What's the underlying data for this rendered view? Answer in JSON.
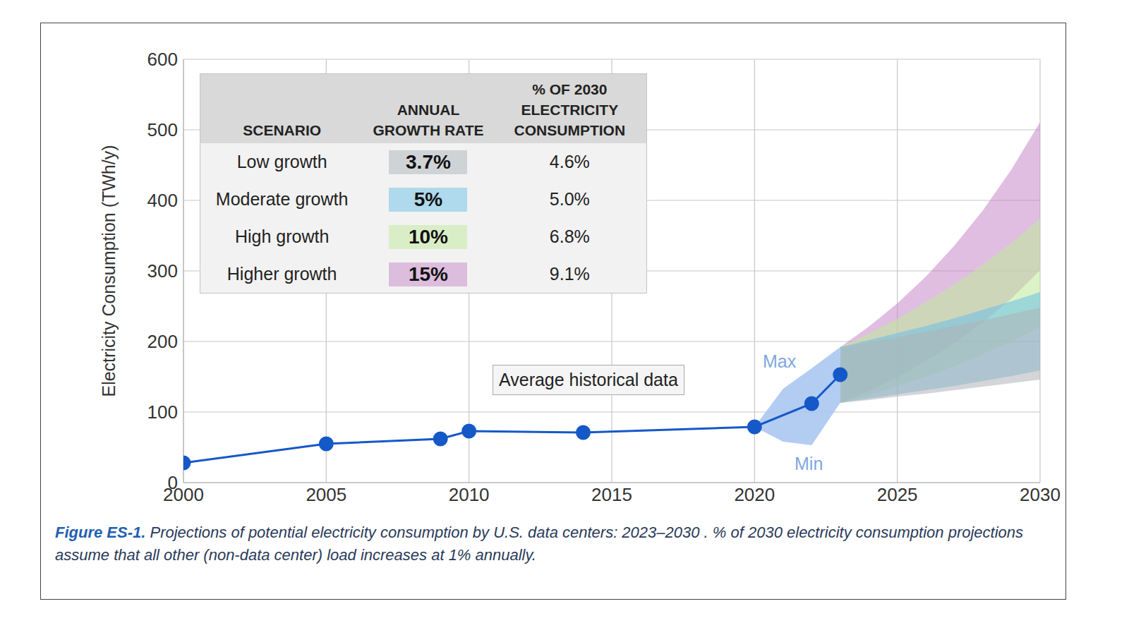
{
  "chart_data": {
    "type": "line",
    "caption_label": "Figure ES-1.",
    "caption": "Projections of potential electricity consumption by U.S. data centers: 2023–2030 . % of 2030 electricity consumption projections assume that all other (non-data center) load increases at 1% annually.",
    "y_label": "Electricity Consumption (TWh/y)",
    "xlim": [
      2000,
      2030
    ],
    "xticks": [
      2000,
      2005,
      2010,
      2015,
      2020,
      2025,
      2030
    ],
    "ylim": [
      0,
      600
    ],
    "yticks": [
      0,
      100,
      200,
      300,
      400,
      500,
      600
    ],
    "grid": true,
    "historical": {
      "name": "Average historical data",
      "color": "#1558c8",
      "marker": "circle",
      "x": [
        2000,
        2005,
        2009,
        2010,
        2014,
        2020,
        2022,
        2023
      ],
      "values": [
        28,
        55,
        62,
        73,
        71,
        79,
        112,
        153
      ]
    },
    "historical_range": {
      "color": "#a6c3ee",
      "max_label": "Max",
      "min_label": "Min",
      "x": [
        2020,
        2021,
        2022,
        2023
      ],
      "min": [
        79,
        58,
        53,
        113
      ],
      "max": [
        79,
        133,
        162,
        192
      ]
    },
    "table_headers": [
      [
        "SCENARIO"
      ],
      [
        "ANNUAL",
        "GROWTH RATE"
      ],
      [
        "% OF 2030",
        "ELECTRICITY",
        "CONSUMPTION"
      ]
    ],
    "projection_x": [
      2023,
      2024,
      2025,
      2026,
      2027,
      2028,
      2029,
      2030
    ],
    "series": [
      {
        "name": "Low growth",
        "color": "#aeb3b7",
        "annual_growth_rate": "3.7%",
        "share_of_2030_consumption": "4.6%",
        "low": [
          113,
          117,
          122,
          126,
          131,
          136,
          141,
          146
        ],
        "high": [
          192,
          199,
          206,
          214,
          222,
          230,
          239,
          248
        ]
      },
      {
        "name": "Moderate growth",
        "color": "#6cc0e6",
        "annual_growth_rate": "5%",
        "share_of_2030_consumption": "5.0%",
        "low": [
          113,
          119,
          125,
          131,
          137,
          144,
          151,
          159
        ],
        "high": [
          192,
          202,
          212,
          222,
          233,
          245,
          257,
          270
        ]
      },
      {
        "name": "High growth",
        "color": "#bfe99a",
        "annual_growth_rate": "10%",
        "share_of_2030_consumption": "6.8%",
        "low": [
          113,
          124,
          137,
          150,
          165,
          182,
          200,
          220
        ],
        "high": [
          192,
          211,
          232,
          256,
          281,
          309,
          340,
          374
        ]
      },
      {
        "name": "Higher growth",
        "color": "#c688c8",
        "annual_growth_rate": "15%",
        "share_of_2030_consumption": "9.1%",
        "low": [
          113,
          130,
          149,
          172,
          198,
          227,
          261,
          301
        ],
        "high": [
          192,
          221,
          254,
          292,
          336,
          386,
          444,
          511
        ]
      }
    ]
  }
}
